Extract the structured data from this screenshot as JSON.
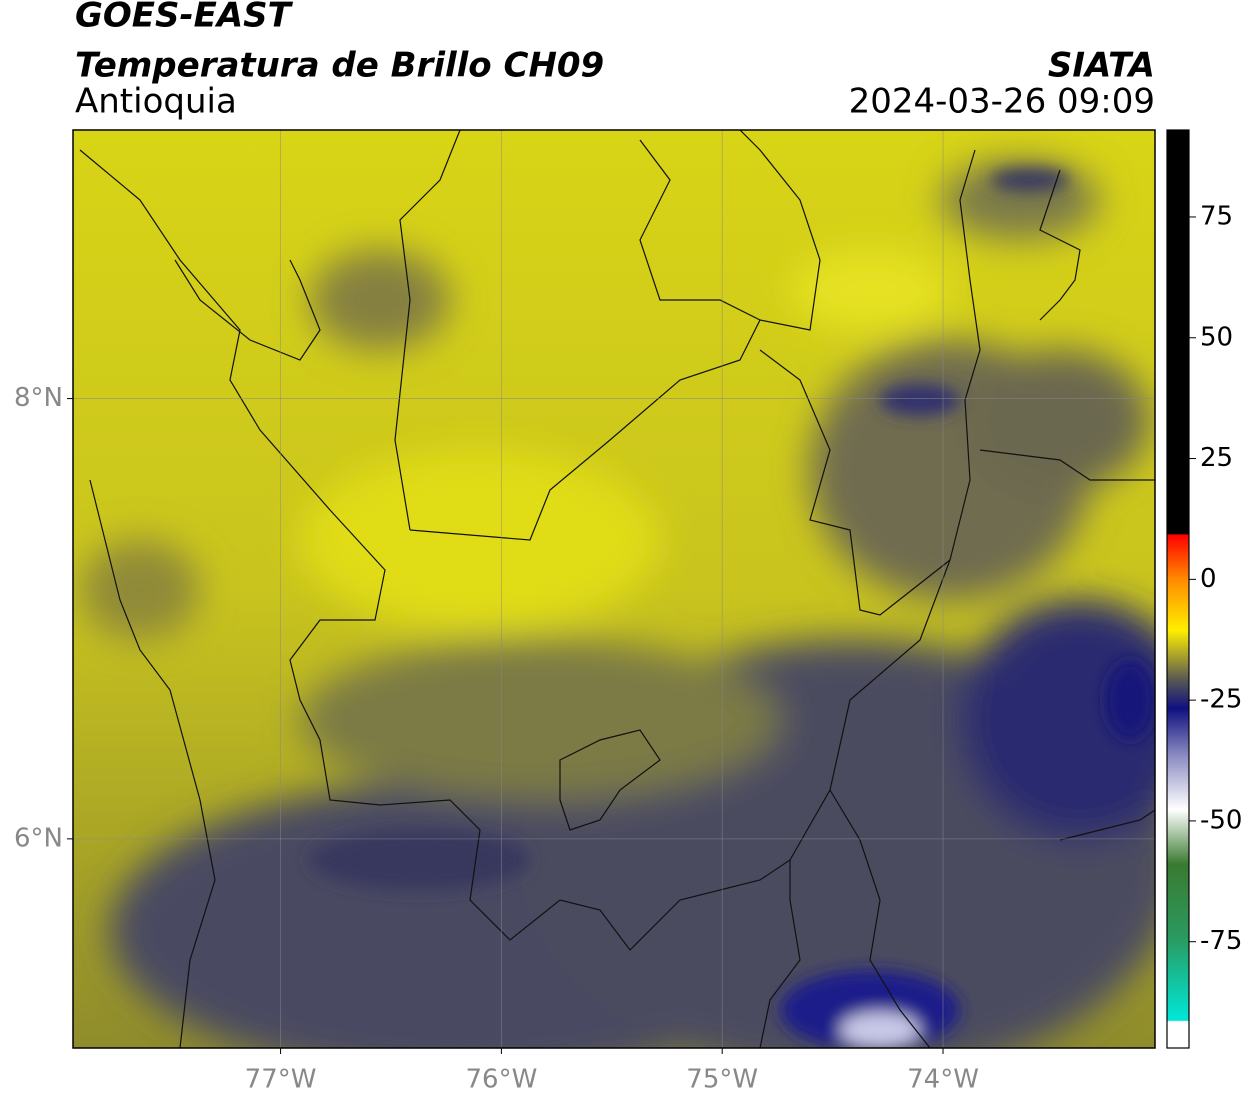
{
  "header": {
    "satellite": "GOES-EAST",
    "product": "Temperatura de Brillo CH09",
    "region": "Antioquia",
    "source": "SIATA",
    "timestamp": "2024-03-26 09:09"
  },
  "map": {
    "xlim": [
      -77.94,
      -73.04
    ],
    "ylim": [
      5.05,
      9.22
    ],
    "xticks": [
      {
        "value": -77,
        "label": "77°W"
      },
      {
        "value": -76,
        "label": "76°W"
      },
      {
        "value": -75,
        "label": "75°W"
      },
      {
        "value": -74,
        "label": "74°W"
      }
    ],
    "yticks": [
      {
        "value": 6,
        "label": "6°N"
      },
      {
        "value": 8,
        "label": "8°N"
      }
    ],
    "grid": true
  },
  "colorbar": {
    "lim": [
      -97,
      93
    ],
    "ticks": [
      75,
      50,
      25,
      0,
      -25,
      -50,
      -75
    ]
  }
}
